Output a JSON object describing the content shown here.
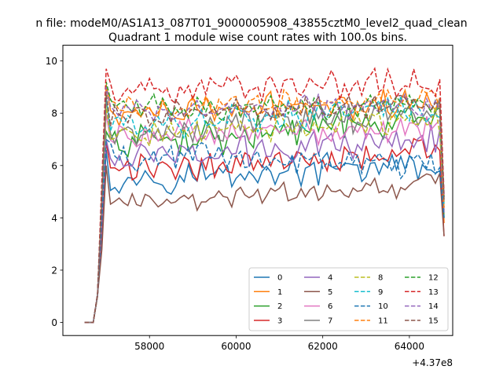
{
  "figure": {
    "suptitle": "n file: modeM0/AS1A13_087T01_9000005908_43855cztM0_level2_quad_clean"
  },
  "chart_data": {
    "type": "line",
    "title": "Quadrant 1 module wise count rates with 100.0s bins.",
    "xlabel": "",
    "ylabel": "",
    "x_offset_label": "+4.37e8",
    "xlim": [
      56000,
      65000
    ],
    "ylim": [
      -0.5,
      10.6
    ],
    "x_ticks": [
      58000,
      60000,
      62000,
      64000
    ],
    "x_tick_labels": [
      "58000",
      "60000",
      "62000",
      "64000"
    ],
    "y_ticks": [
      0,
      2,
      4,
      6,
      8,
      10
    ],
    "y_tick_labels": [
      "0",
      "2",
      "4",
      "6",
      "8",
      "10"
    ],
    "grid": false,
    "legend_position": "lower-right",
    "legend_columns": 4,
    "x_start": 56500,
    "x_step": 100,
    "n_points": 84,
    "series": [
      {
        "name": "0",
        "color": "#1f77b4",
        "style": "solid",
        "plateau": 5.5,
        "peak": 6.6,
        "trend": 0.5,
        "noise": 0.35,
        "end": 4.3
      },
      {
        "name": "1",
        "color": "#ff7f0e",
        "style": "solid",
        "plateau": 7.9,
        "peak": 9.1,
        "trend": 0.6,
        "noise": 0.35,
        "end": 3.8
      },
      {
        "name": "2",
        "color": "#2ca02c",
        "style": "solid",
        "plateau": 6.8,
        "peak": 7.3,
        "trend": 1.0,
        "noise": 0.4,
        "end": 4.0
      },
      {
        "name": "3",
        "color": "#d62728",
        "style": "solid",
        "plateau": 5.8,
        "peak": 6.9,
        "trend": 0.8,
        "noise": 0.35,
        "end": 3.3
      },
      {
        "name": "4",
        "color": "#9467bd",
        "style": "solid",
        "plateau": 6.2,
        "peak": 7.0,
        "trend": 0.9,
        "noise": 0.35,
        "end": 4.2
      },
      {
        "name": "5",
        "color": "#8c564b",
        "style": "solid",
        "plateau": 4.5,
        "peak": 6.0,
        "trend": 0.8,
        "noise": 0.25,
        "end": 3.3
      },
      {
        "name": "6",
        "color": "#e377c2",
        "style": "solid",
        "plateau": 7.0,
        "peak": 8.0,
        "trend": 0.6,
        "noise": 0.35,
        "end": 4.4
      },
      {
        "name": "7",
        "color": "#7f7f7f",
        "style": "solid",
        "plateau": 7.3,
        "peak": 8.6,
        "trend": 0.8,
        "noise": 0.35,
        "end": 4.6
      },
      {
        "name": "8",
        "color": "#bcbd22",
        "style": "dashed",
        "plateau": 7.1,
        "peak": 8.3,
        "trend": 0.7,
        "noise": 0.3,
        "end": 4.5
      },
      {
        "name": "9",
        "color": "#17becf",
        "style": "dashed",
        "plateau": 7.5,
        "peak": 8.7,
        "trend": 0.7,
        "noise": 0.35,
        "end": 4.4
      },
      {
        "name": "10",
        "color": "#1f77b4",
        "style": "dashed",
        "plateau": 6.4,
        "peak": 7.0,
        "trend": -0.4,
        "noise": 0.35,
        "end": 4.0
      },
      {
        "name": "11",
        "color": "#ff7f0e",
        "style": "dashed",
        "plateau": 8.1,
        "peak": 9.0,
        "trend": 0.4,
        "noise": 0.3,
        "end": 4.3
      },
      {
        "name": "12",
        "color": "#2ca02c",
        "style": "dashed",
        "plateau": 8.2,
        "peak": 9.2,
        "trend": 0.1,
        "noise": 0.3,
        "end": 4.8
      },
      {
        "name": "13",
        "color": "#d62728",
        "style": "dashed",
        "plateau": 8.8,
        "peak": 9.7,
        "trend": 0.4,
        "noise": 0.35,
        "end": 4.9
      },
      {
        "name": "14",
        "color": "#9467bd",
        "style": "dashed",
        "plateau": 8.0,
        "peak": 9.0,
        "trend": 0.4,
        "noise": 0.3,
        "end": 4.8
      },
      {
        "name": "15",
        "color": "#8c564b",
        "style": "dashed",
        "plateau": 7.9,
        "peak": 8.8,
        "trend": 0.5,
        "noise": 0.3,
        "end": 4.7
      }
    ]
  }
}
